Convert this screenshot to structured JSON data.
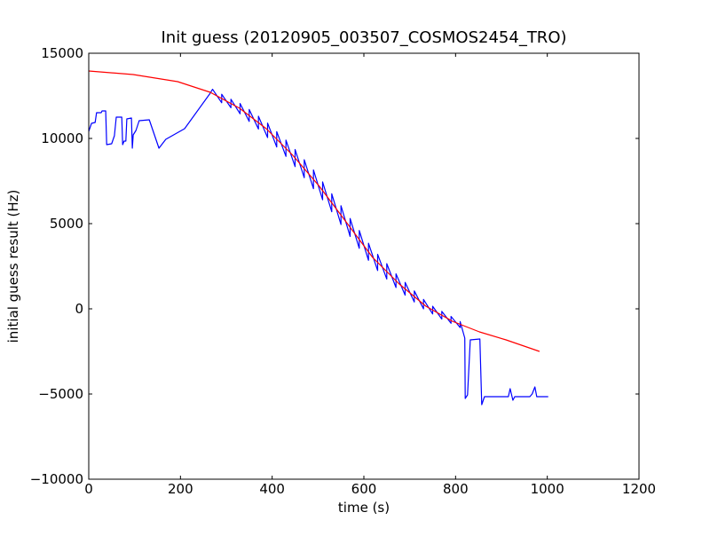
{
  "chart_data": {
    "type": "line",
    "title": "Init guess (20120905_003507_COSMOS2454_TRO)",
    "xlabel": "time (s)",
    "ylabel": "initial guess result (Hz)",
    "xlim": [
      0,
      1200
    ],
    "ylim": [
      -10000,
      15000
    ],
    "xticks": [
      0,
      200,
      400,
      600,
      800,
      1000,
      1200
    ],
    "yticks": [
      -10000,
      -5000,
      0,
      5000,
      10000,
      15000
    ],
    "xtick_labels": [
      "0",
      "200",
      "400",
      "600",
      "800",
      "1000",
      "1200"
    ],
    "ytick_labels": [
      "−10000",
      "−5000",
      "0",
      "5000",
      "10000",
      "15000"
    ],
    "grid": false,
    "series": [
      {
        "name": "initial guess",
        "color": "#0000ff",
        "points": [
          [
            0,
            10417
          ],
          [
            6,
            10886
          ],
          [
            14,
            10938
          ],
          [
            17,
            11510
          ],
          [
            27,
            11510
          ],
          [
            29,
            11615
          ],
          [
            37,
            11615
          ],
          [
            39,
            9636
          ],
          [
            50,
            9688
          ],
          [
            56,
            10156
          ],
          [
            60,
            11250
          ],
          [
            72,
            11250
          ],
          [
            74,
            9636
          ],
          [
            77,
            9844
          ],
          [
            81,
            9844
          ],
          [
            83,
            11146
          ],
          [
            93,
            11198
          ],
          [
            95,
            9427
          ],
          [
            97,
            10208
          ],
          [
            103,
            10469
          ],
          [
            110,
            11042
          ],
          [
            132,
            11094
          ],
          [
            153,
            9427
          ],
          [
            168,
            9948
          ],
          [
            209,
            10573
          ],
          [
            265,
            12656
          ],
          [
            270,
            12885
          ],
          [
            290,
            12092
          ],
          [
            290,
            12592
          ],
          [
            310,
            11800
          ],
          [
            310,
            12300
          ],
          [
            330,
            11450
          ],
          [
            330,
            12050
          ],
          [
            350,
            11000
          ],
          [
            350,
            11700
          ],
          [
            370,
            10550
          ],
          [
            370,
            11300
          ],
          [
            390,
            10050
          ],
          [
            390,
            10900
          ],
          [
            410,
            9500
          ],
          [
            410,
            10400
          ],
          [
            430,
            8950
          ],
          [
            430,
            9900
          ],
          [
            450,
            8350
          ],
          [
            450,
            9350
          ],
          [
            470,
            7700
          ],
          [
            470,
            8750
          ],
          [
            490,
            7050
          ],
          [
            490,
            8150
          ],
          [
            510,
            6400
          ],
          [
            510,
            7450
          ],
          [
            530,
            5700
          ],
          [
            530,
            6750
          ],
          [
            550,
            4950
          ],
          [
            550,
            6050
          ],
          [
            570,
            4250
          ],
          [
            570,
            5300
          ],
          [
            590,
            3550
          ],
          [
            590,
            4600
          ],
          [
            610,
            2850
          ],
          [
            610,
            3850
          ],
          [
            630,
            2250
          ],
          [
            630,
            3200
          ],
          [
            650,
            1750
          ],
          [
            650,
            2650
          ],
          [
            670,
            1250
          ],
          [
            670,
            2050
          ],
          [
            690,
            800
          ],
          [
            690,
            1550
          ],
          [
            710,
            400
          ],
          [
            710,
            1050
          ],
          [
            730,
            0
          ],
          [
            730,
            550
          ],
          [
            750,
            -300
          ],
          [
            750,
            150
          ],
          [
            770,
            -600
          ],
          [
            770,
            -150
          ],
          [
            790,
            -850
          ],
          [
            790,
            -450
          ],
          [
            810,
            -1100
          ],
          [
            810,
            -750
          ],
          [
            820,
            -1720
          ],
          [
            821,
            -5260
          ],
          [
            826,
            -5052
          ],
          [
            832,
            -1823
          ],
          [
            853,
            -1771
          ],
          [
            857,
            -5625
          ],
          [
            863,
            -5156
          ],
          [
            915,
            -5156
          ],
          [
            919,
            -4688
          ],
          [
            925,
            -5365
          ],
          [
            929,
            -5156
          ],
          [
            962,
            -5156
          ],
          [
            967,
            -5000
          ],
          [
            973,
            -4583
          ],
          [
            977,
            -5156
          ],
          [
            1002,
            -5156
          ]
        ]
      },
      {
        "name": "fit",
        "color": "#ff0000",
        "points": [
          [
            0,
            13958
          ],
          [
            97,
            13750
          ],
          [
            194,
            13333
          ],
          [
            265,
            12708
          ],
          [
            329,
            11771
          ],
          [
            387,
            10573
          ],
          [
            445,
            9010
          ],
          [
            503,
            7188
          ],
          [
            561,
            5104
          ],
          [
            619,
            3021
          ],
          [
            677,
            1458
          ],
          [
            735,
            156
          ],
          [
            793,
            -729
          ],
          [
            852,
            -1354
          ],
          [
            910,
            -1823
          ],
          [
            983,
            -2500
          ]
        ]
      }
    ]
  }
}
